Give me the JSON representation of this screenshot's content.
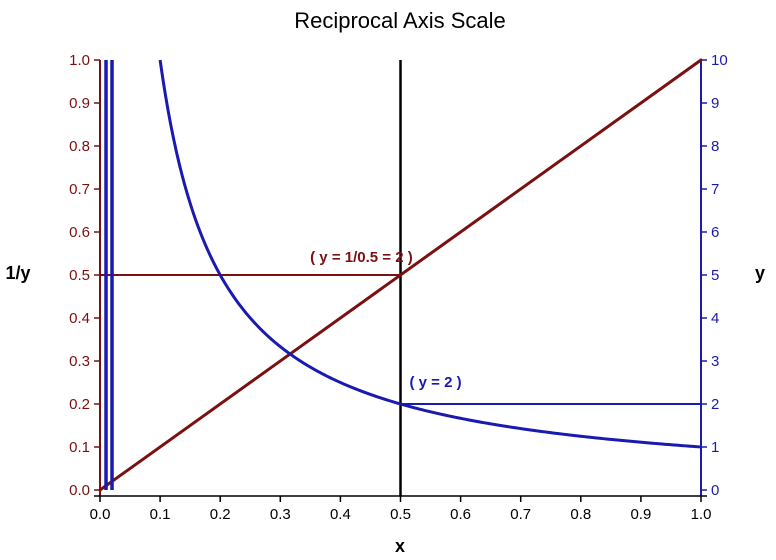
{
  "chart_data": {
    "type": "line",
    "title": "Reciprocal Axis Scale",
    "xlabel": "x",
    "ylabel_left": "1/y",
    "ylabel_right": "y",
    "xlim": [
      0,
      1
    ],
    "ylim_left": [
      0,
      1
    ],
    "ylim_right": [
      0,
      10
    ],
    "x_ticks": [
      "0.0",
      "0.1",
      "0.2",
      "0.3",
      "0.4",
      "0.5",
      "0.6",
      "0.7",
      "0.8",
      "0.9",
      "1.0"
    ],
    "y_left_ticks": [
      "0.0",
      "0.1",
      "0.2",
      "0.3",
      "0.4",
      "0.5",
      "0.6",
      "0.7",
      "0.8",
      "0.9",
      "1.0"
    ],
    "y_right_ticks": [
      "0",
      "1",
      "2",
      "3",
      "4",
      "5",
      "6",
      "7",
      "8",
      "9",
      "10"
    ],
    "grid": false,
    "colors": {
      "left_axis": "#7B1010",
      "right_axis": "#1A1AB0",
      "x_axis": "#000000"
    },
    "series": [
      {
        "axis": "left",
        "color": "#7B1010",
        "style": "linear",
        "points": [
          [
            0.0,
            0.0
          ],
          [
            1.0,
            1.0
          ]
        ]
      },
      {
        "axis": "right",
        "color": "#1A1AB0",
        "style": "reciprocal",
        "x_start": 0.1,
        "x_end": 1.0
      },
      {
        "axis": "right",
        "color": "#1A1AB0",
        "style": "vertical",
        "x": [
          0.01,
          0.02
        ]
      }
    ],
    "reference_lines": [
      {
        "type": "horizontal",
        "axis": "left",
        "y": 0.5,
        "x_from": 0,
        "x_to": 0.5,
        "color": "#7B1010"
      },
      {
        "type": "vertical",
        "x": 0.5,
        "color": "#000000"
      },
      {
        "type": "horizontal",
        "axis": "right",
        "y": 2,
        "x_from": 0.5,
        "x_to": 1.0,
        "color": "#1A1AB0"
      }
    ],
    "annotations": [
      {
        "text": "( y = 1/0.5 = 2 )",
        "x": 0.435,
        "y": 10,
        "y_axis": "right",
        "color": "#7B1010",
        "anchor": "middle",
        "at": [
          0.435,
          5.3
        ]
      },
      {
        "text": "( y = 2 )",
        "x": 0.515,
        "y": 2.4,
        "y_axis": "right",
        "color": "#1A1AB0",
        "anchor": "start",
        "at": [
          0.515,
          2.4
        ]
      }
    ]
  }
}
